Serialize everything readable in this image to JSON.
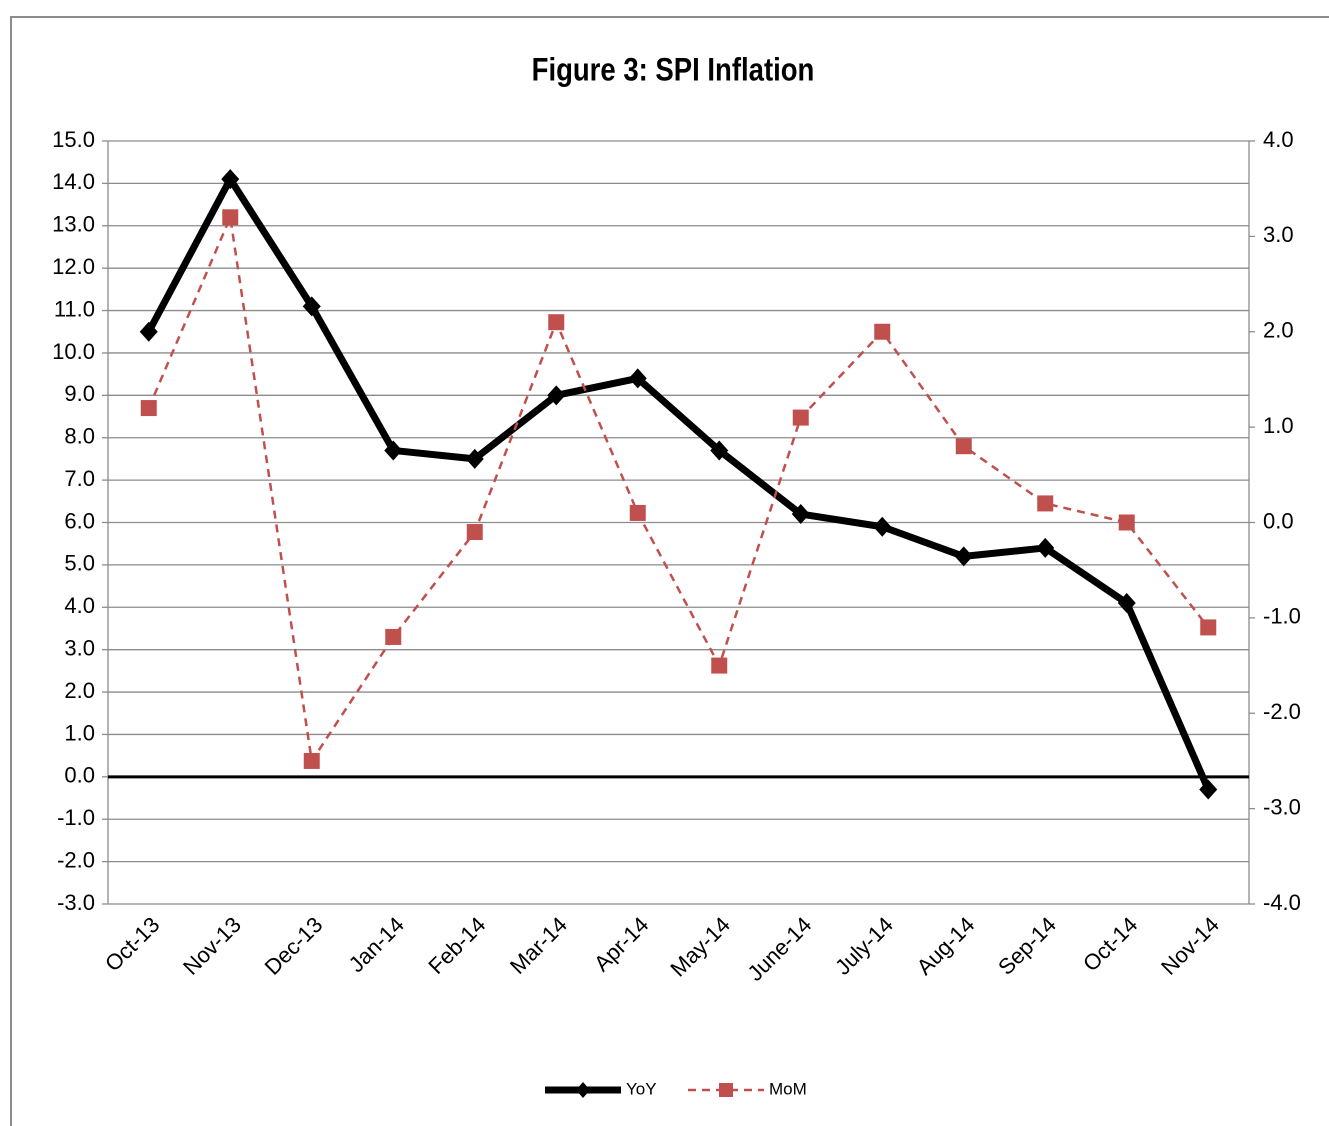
{
  "chart_data": {
    "type": "line",
    "title": "Figure 3: SPI Inflation",
    "categories": [
      "Oct-13",
      "Nov-13",
      "Dec-13",
      "Jan-14",
      "Feb-14",
      "Mar-14",
      "Apr-14",
      "May-14",
      "June-14",
      "July-14",
      "Aug-14",
      "Sep-14",
      "Oct-14",
      "Nov-14"
    ],
    "series": [
      {
        "name": "YoY",
        "color": "#000000",
        "values": [
          10.5,
          14.1,
          11.1,
          7.7,
          7.5,
          9.0,
          9.4,
          7.7,
          6.2,
          5.9,
          5.2,
          5.4,
          4.1,
          -0.3
        ]
      },
      {
        "name": "MoM",
        "color": "#c0504d",
        "axis": "y2",
        "values": [
          1.2,
          3.2,
          -2.5,
          -1.2,
          -0.1,
          2.1,
          0.1,
          -1.5,
          1.1,
          2.0,
          0.8,
          0.2,
          0.0,
          -1.1
        ]
      }
    ],
    "ylim": [
      -3,
      15
    ],
    "yticks": [
      {
        "value": -3,
        "label": "-3.0"
      },
      {
        "value": -2,
        "label": "-2.0"
      },
      {
        "value": -1,
        "label": "-1.0"
      },
      {
        "value": 0,
        "label": "0.0"
      },
      {
        "value": 1,
        "label": "1.0"
      },
      {
        "value": 2,
        "label": "2.0"
      },
      {
        "value": 3,
        "label": "3.0"
      },
      {
        "value": 4,
        "label": "4.0"
      },
      {
        "value": 5,
        "label": "5.0"
      },
      {
        "value": 6,
        "label": "6.0"
      },
      {
        "value": 7,
        "label": "7.0"
      },
      {
        "value": 8,
        "label": "8.0"
      },
      {
        "value": 9,
        "label": "9.0"
      },
      {
        "value": 10,
        "label": "10.0"
      },
      {
        "value": 11,
        "label": "11.0"
      },
      {
        "value": 12,
        "label": "12.0"
      },
      {
        "value": 13,
        "label": "13.0"
      },
      {
        "value": 14,
        "label": "14.0"
      },
      {
        "value": 15,
        "label": "15.0"
      }
    ],
    "y2lim": [
      -4,
      4
    ],
    "y2ticks": [
      {
        "value": -4,
        "label": "-4.0"
      },
      {
        "value": -3,
        "label": "-3.0"
      },
      {
        "value": -2,
        "label": "-2.0"
      },
      {
        "value": -1,
        "label": "-1.0"
      },
      {
        "value": 0,
        "label": "0.0"
      },
      {
        "value": 1,
        "label": "1.0"
      },
      {
        "value": 2,
        "label": "2.0"
      },
      {
        "value": 3,
        "label": "3.0"
      },
      {
        "value": 4,
        "label": "4.0"
      }
    ],
    "grid": true,
    "legend": "bottom"
  }
}
